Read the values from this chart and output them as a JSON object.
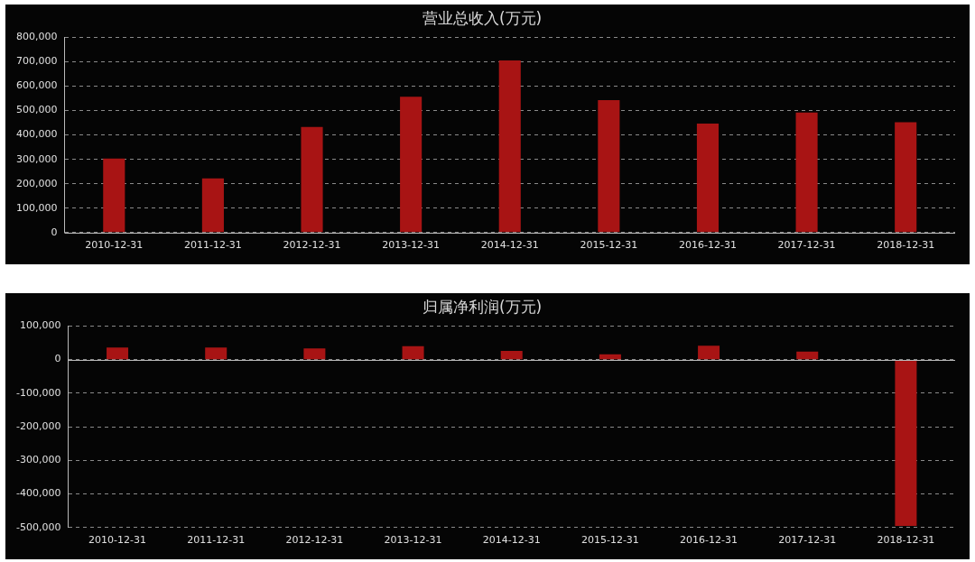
{
  "chart_data": [
    {
      "type": "bar",
      "title": "营业总收入(万元)",
      "categories": [
        "2010-12-31",
        "2011-12-31",
        "2012-12-31",
        "2013-12-31",
        "2014-12-31",
        "2015-12-31",
        "2016-12-31",
        "2017-12-31",
        "2018-12-31"
      ],
      "values": [
        303000,
        222000,
        433000,
        557000,
        705000,
        543000,
        447000,
        492000,
        452000
      ],
      "color": "#a81414",
      "ylim": [
        0,
        800000
      ],
      "yticks": [
        {
          "value": 0,
          "label": "0"
        },
        {
          "value": 100000,
          "label": "100,000"
        },
        {
          "value": 200000,
          "label": "200,000"
        },
        {
          "value": 300000,
          "label": "300,000"
        },
        {
          "value": 400000,
          "label": "400,000"
        },
        {
          "value": 500000,
          "label": "500,000"
        },
        {
          "value": 600000,
          "label": "600,000"
        },
        {
          "value": 700000,
          "label": "700,000"
        },
        {
          "value": 800000,
          "label": "800,000"
        }
      ],
      "grid": "y"
    },
    {
      "type": "bar",
      "title": "归属净利润(万元)",
      "categories": [
        "2010-12-31",
        "2011-12-31",
        "2012-12-31",
        "2013-12-31",
        "2014-12-31",
        "2015-12-31",
        "2016-12-31",
        "2017-12-31",
        "2018-12-31"
      ],
      "values": [
        36000,
        36000,
        33000,
        40000,
        26000,
        16000,
        41000,
        24000,
        -495000
      ],
      "color": "#a81414",
      "ylim": [
        -500000,
        100000
      ],
      "yticks": [
        {
          "value": -500000,
          "label": "-500,000"
        },
        {
          "value": -400000,
          "label": "-400,000"
        },
        {
          "value": -300000,
          "label": "-300,000"
        },
        {
          "value": -200000,
          "label": "-200,000"
        },
        {
          "value": -100000,
          "label": "-100,000"
        },
        {
          "value": 0,
          "label": "0"
        },
        {
          "value": 100000,
          "label": "100,000"
        }
      ],
      "grid": "y"
    }
  ]
}
